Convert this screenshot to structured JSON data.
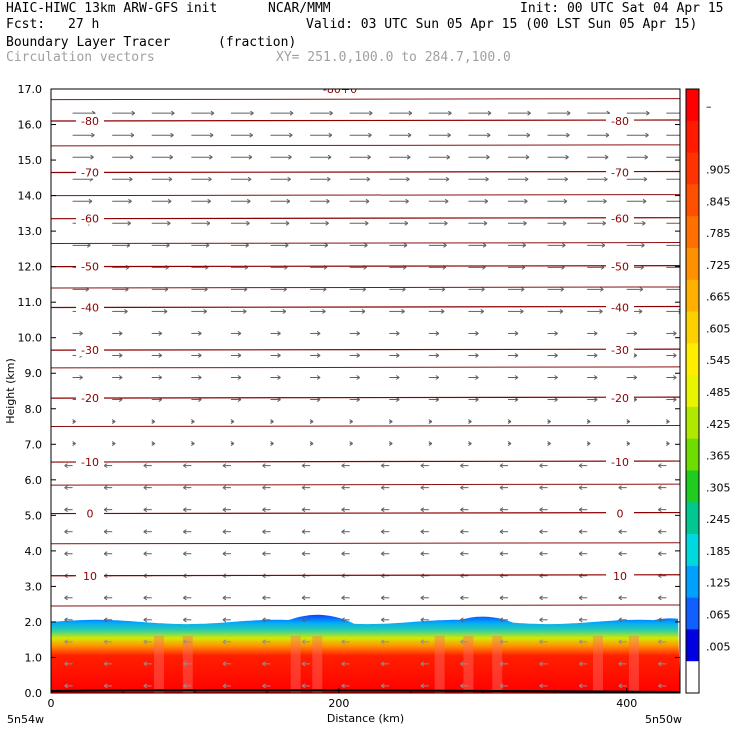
{
  "header": {
    "model": "HAIC-HIWC 13km ARW-GFS init",
    "org": "NCAR/MMM",
    "init": "Init: 00 UTC Sat 04 Apr 15",
    "fcst_label": "Fcst:",
    "fcst_value": "27 h",
    "valid": "Valid: 03 UTC Sun 05 Apr 15 (00 LST Sun 05 Apr 15)",
    "field": "Boundary Layer Tracer",
    "units": "(fraction)",
    "vectors": "Circulation vectors",
    "xy": "XY= 251.0,100.0 to 284.7,100.0"
  },
  "chart_data": {
    "type": "heatmap",
    "title": "Boundary Layer Tracer",
    "xlabel": "Distance (km)",
    "ylabel": "Height (km)",
    "xlim": [
      0,
      437
    ],
    "ylim": [
      0,
      17
    ],
    "x_ticks": [
      0,
      200,
      400
    ],
    "y_ticks": [
      "0.0",
      "1.0",
      "2.0",
      "3.0",
      "4.0",
      "5.0",
      "6.0",
      "7.0",
      "8.0",
      "9.0",
      "10.0",
      "11.0",
      "12.0",
      "13.0",
      "14.0",
      "15.0",
      "16.0",
      "17.0"
    ],
    "x_end_labels": {
      "left": "5n54w",
      "right": "5n50w"
    },
    "colorbar": {
      "labels": [
        "–",
        ".905",
        ".845",
        ".785",
        ".725",
        ".665",
        ".605",
        ".545",
        ".485",
        ".425",
        ".365",
        ".305",
        ".245",
        ".185",
        ".125",
        ".065",
        ".005"
      ],
      "colors": [
        "#ff0000",
        "#ff1a00",
        "#ff3300",
        "#ff5000",
        "#ff7000",
        "#ff9000",
        "#ffb000",
        "#ffd000",
        "#ffee00",
        "#e8f500",
        "#b0e800",
        "#70dd00",
        "#20cc20",
        "#00c890",
        "#00d8e0",
        "#00a0ff",
        "#1060ff",
        "#0000e0",
        "#ffffff"
      ]
    },
    "tracer_layer": {
      "top_km": 2.0,
      "bumps": [
        {
          "center_km": 185,
          "top_km": 2.2
        },
        {
          "center_km": 300,
          "top_km": 2.15
        },
        {
          "center_km": 430,
          "top_km": 2.1
        }
      ]
    },
    "temperature_contours": [
      {
        "label": "10",
        "height_km": 3.3
      },
      {
        "label": "0",
        "height_km": 5.05
      },
      {
        "label": "-10",
        "height_km": 6.5
      },
      {
        "label": "-20",
        "height_km": 8.3
      },
      {
        "label": "-30",
        "height_km": 9.65
      },
      {
        "label": "-40",
        "height_km": 10.85
      },
      {
        "label": "-50",
        "height_km": 12.0
      },
      {
        "label": "-60",
        "height_km": 13.35
      },
      {
        "label": "-70",
        "height_km": 14.65
      },
      {
        "label": "-80",
        "height_km": 16.1
      }
    ],
    "top_label": "-80+0"
  }
}
